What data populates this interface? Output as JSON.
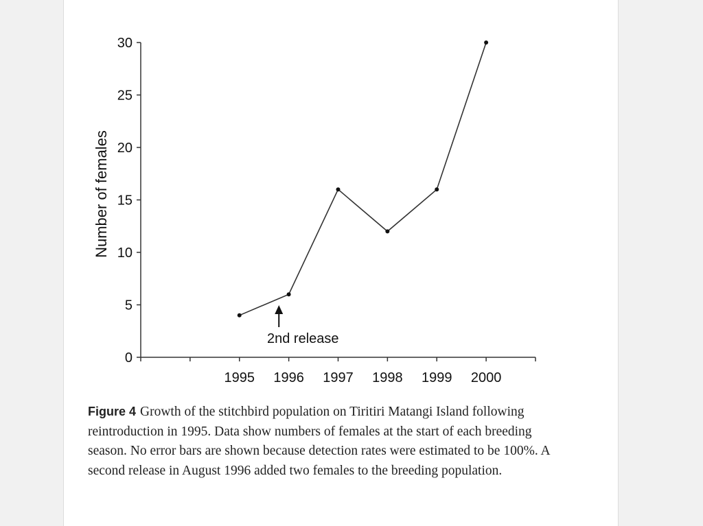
{
  "chart_data": {
    "type": "line",
    "x": [
      1995,
      1996,
      1997,
      1998,
      1999,
      2000
    ],
    "categories": [
      "1995",
      "1996",
      "1997",
      "1998",
      "1999",
      "2000"
    ],
    "series": [
      {
        "values": [
          4,
          6,
          16,
          12,
          16,
          30
        ]
      }
    ],
    "ylabel": "Number of females",
    "xlabel": "",
    "ylim": [
      0,
      30
    ],
    "yticks": [
      0,
      5,
      10,
      15,
      20,
      25,
      30
    ],
    "xlim": [
      1993,
      2001
    ],
    "grid": false,
    "line_color": "#333333",
    "annotation": {
      "text": "2nd release",
      "x": 1995.8
    }
  },
  "caption": {
    "label": "Figure 4",
    "text": "Growth of the stitchbird population on Tiritiri Matangi Island following reintroduction in 1995. Data show numbers of females at the start of each breeding season. No error bars are shown because detection rates were estimated to be 100%. A second release in August 1996 added two females to the breeding population."
  }
}
